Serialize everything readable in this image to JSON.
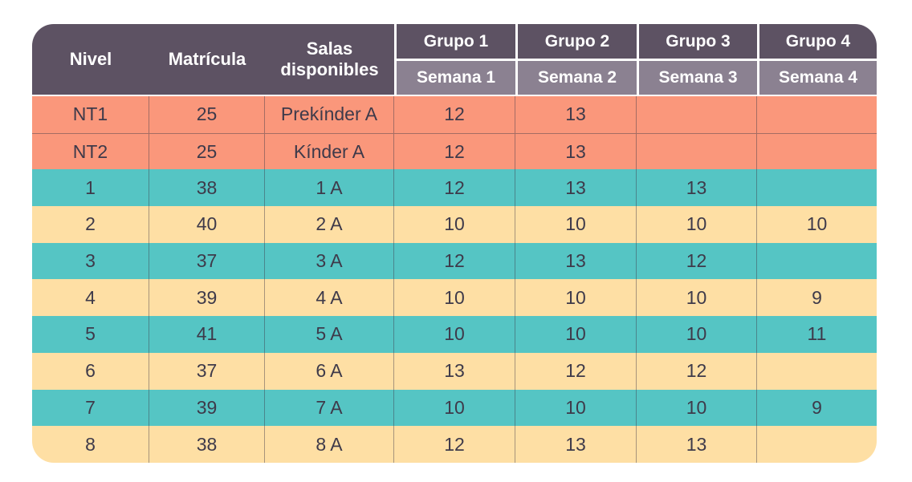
{
  "table": {
    "static_columns": [
      {
        "label": "Nivel"
      },
      {
        "label": "Matrícula"
      },
      {
        "label": "Salas disponibles"
      }
    ],
    "group_columns": [
      {
        "group": "Grupo 1",
        "week": "Semana 1"
      },
      {
        "group": "Grupo 2",
        "week": "Semana 2"
      },
      {
        "group": "Grupo 3",
        "week": "Semana 3"
      },
      {
        "group": "Grupo 4",
        "week": "Semana 4"
      }
    ],
    "rows": [
      {
        "color": "salmon",
        "cells": [
          "NT1",
          "25",
          "Prekínder A",
          "12",
          "13",
          "",
          ""
        ]
      },
      {
        "color": "salmon",
        "cells": [
          "NT2",
          "25",
          "Kínder A",
          "12",
          "13",
          "",
          ""
        ]
      },
      {
        "color": "teal",
        "cells": [
          "1",
          "38",
          "1 A",
          "12",
          "13",
          "13",
          ""
        ]
      },
      {
        "color": "yellow",
        "cells": [
          "2",
          "40",
          "2 A",
          "10",
          "10",
          "10",
          "10"
        ]
      },
      {
        "color": "teal",
        "cells": [
          "3",
          "37",
          "3 A",
          "12",
          "13",
          "12",
          ""
        ]
      },
      {
        "color": "yellow",
        "cells": [
          "4",
          "39",
          "4 A",
          "10",
          "10",
          "10",
          "9"
        ]
      },
      {
        "color": "teal",
        "cells": [
          "5",
          "41",
          "5 A",
          "10",
          "10",
          "10",
          "11"
        ]
      },
      {
        "color": "yellow",
        "cells": [
          "6",
          "37",
          "6 A",
          "13",
          "12",
          "12",
          ""
        ]
      },
      {
        "color": "teal",
        "cells": [
          "7",
          "39",
          "7 A",
          "10",
          "10",
          "10",
          "9"
        ]
      },
      {
        "color": "yellow",
        "cells": [
          "8",
          "38",
          "8 A",
          "12",
          "13",
          "13",
          ""
        ]
      }
    ],
    "colors": {
      "header_dark": "#5D5263",
      "header_light": "#8B8191",
      "header_text": "#FFFFFF",
      "salmon": "#FA977B",
      "teal": "#55C5C4",
      "yellow": "#FEDFA4",
      "body_text": "#3E3A4A"
    }
  }
}
